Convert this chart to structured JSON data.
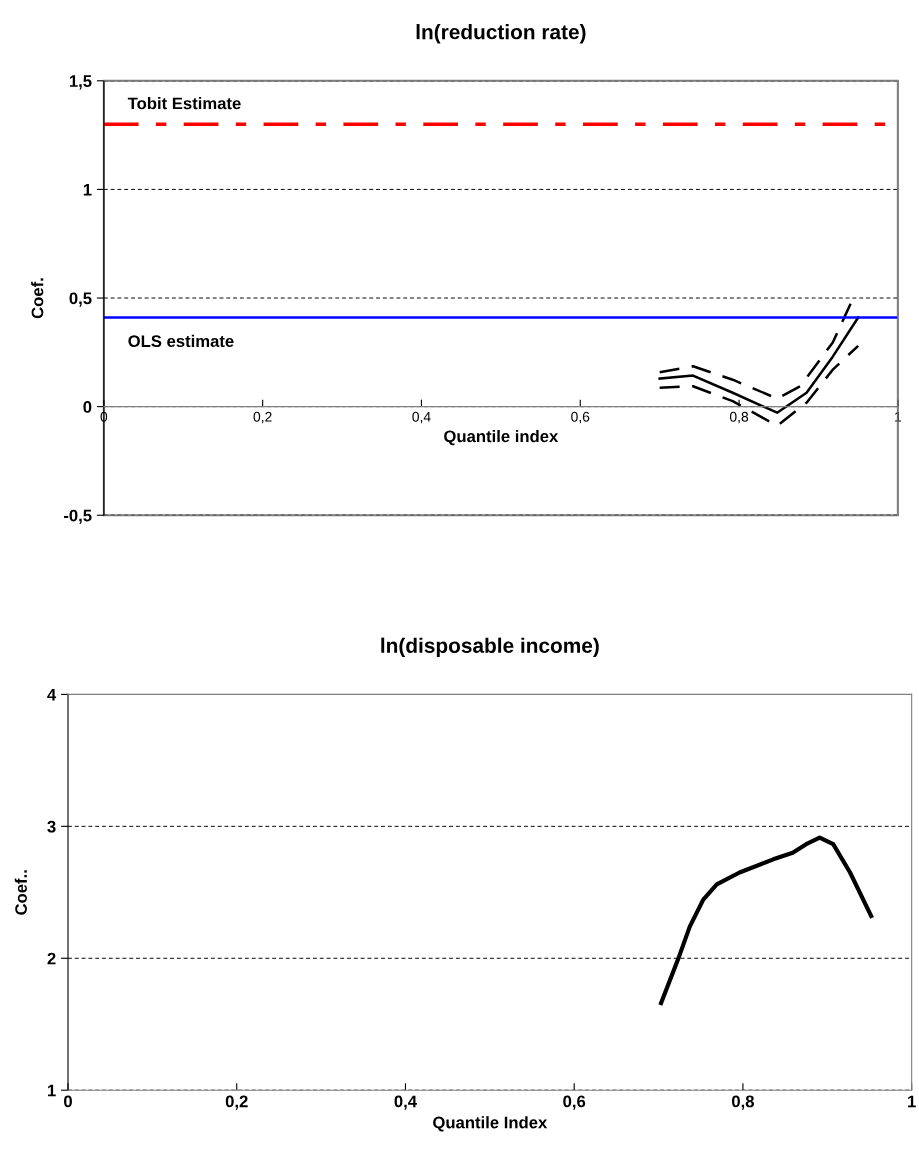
{
  "chart_data": [
    {
      "type": "line",
      "title": "ln(reduction rate)",
      "xlabel": "Quantile index",
      "ylabel": "Coef.",
      "xlim": [
        0,
        1
      ],
      "xticks": [
        {
          "value": 0,
          "label": "0"
        },
        {
          "value": 0.2,
          "label": "0,2"
        },
        {
          "value": 0.4,
          "label": "0,4"
        },
        {
          "value": 0.6,
          "label": "0,6"
        },
        {
          "value": 0.8,
          "label": "0,8"
        },
        {
          "value": 1,
          "label": "1"
        }
      ],
      "ylim": [
        -0.5,
        1.5
      ],
      "yticks": [
        {
          "value": -0.5,
          "label": "-0,5"
        },
        {
          "value": 0,
          "label": "0"
        },
        {
          "value": 0.5,
          "label": "0,5"
        },
        {
          "value": 1,
          "label": "1"
        },
        {
          "value": 1.5,
          "label": "1,5"
        }
      ],
      "grid": "y",
      "legend": false,
      "marker": "none",
      "series": [
        {
          "color": "#000000",
          "line_style": "solid",
          "x": [
            0.7,
            0.742,
            0.792,
            0.848,
            0.885,
            0.918,
            0.95
          ],
          "values": [
            0.129,
            0.143,
            0.064,
            -0.028,
            0.064,
            0.23,
            0.41
          ]
        },
        {
          "color": "#000000",
          "line_style": "dashed",
          "x": [
            0.7,
            0.742,
            0.792,
            0.848,
            0.877,
            0.918,
            0.945
          ],
          "values": [
            0.158,
            0.186,
            0.124,
            0.037,
            0.094,
            0.295,
            0.51
          ]
        },
        {
          "color": "#000000",
          "line_style": "dashed",
          "x": [
            0.7,
            0.742,
            0.792,
            0.848,
            0.885,
            0.918,
            0.95
          ],
          "values": [
            0.087,
            0.094,
            0.025,
            -0.088,
            0.018,
            0.17,
            0.28
          ]
        }
      ],
      "ref_lines": [
        {
          "axis": "y",
          "value": 1.3,
          "label": "Tobit Estimate",
          "color": "#ff0000",
          "line_style": "dashdot"
        },
        {
          "axis": "y",
          "value": 0.41,
          "label": "OLS estimate",
          "color": "#0000ff",
          "line_style": "solid"
        }
      ]
    },
    {
      "type": "line",
      "title": "ln(disposable income)",
      "xlabel": "Quantile Index",
      "ylabel": "Coef..",
      "xlim": [
        0,
        1
      ],
      "xticks": [
        {
          "value": 0,
          "label": "0"
        },
        {
          "value": 0.2,
          "label": "0,2"
        },
        {
          "value": 0.4,
          "label": "0,4"
        },
        {
          "value": 0.6,
          "label": "0,6"
        },
        {
          "value": 0.8,
          "label": "0,8"
        },
        {
          "value": 1,
          "label": "1"
        }
      ],
      "ylim": [
        1,
        4
      ],
      "yticks": [
        1,
        2,
        3,
        4
      ],
      "grid": "y",
      "legend": false,
      "marker": "none",
      "series": [
        {
          "color": "#000000",
          "line_style": "solid",
          "x": [
            0.703,
            0.723,
            0.737,
            0.753,
            0.769,
            0.796,
            0.836,
            0.859,
            0.875,
            0.891,
            0.907,
            0.927,
            0.952
          ],
          "values": [
            1.66,
            1.99,
            2.24,
            2.445,
            2.56,
            2.65,
            2.75,
            2.8,
            2.865,
            2.915,
            2.865,
            2.65,
            2.32
          ]
        }
      ]
    }
  ]
}
